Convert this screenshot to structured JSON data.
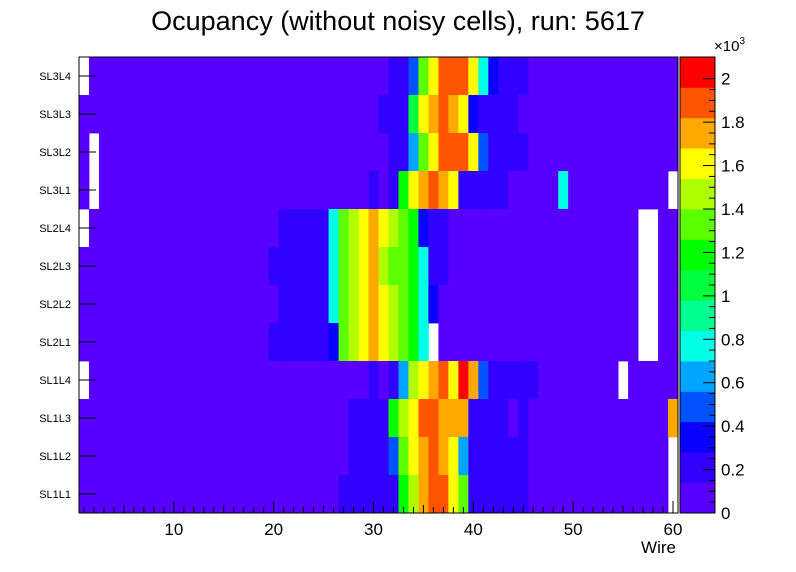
{
  "chart_data": {
    "type": "heatmap",
    "title": "Ocupancy (without noisy cells), run: 5617",
    "xlabel": "Wire",
    "ylabel": "",
    "xlim": [
      0.5,
      60.5
    ],
    "x_ticks": [
      "10",
      "20",
      "30",
      "40",
      "50",
      "60"
    ],
    "x_tick_values": [
      10,
      20,
      30,
      40,
      50,
      60
    ],
    "rows": [
      "SL3L4",
      "SL3L3",
      "SL3L2",
      "SL3L1",
      "SL2L4",
      "SL2L3",
      "SL2L2",
      "SL2L1",
      "SL1L4",
      "SL1L3",
      "SL1L2",
      "SL1L1"
    ],
    "z_scale_label": "×10",
    "z_scale_exponent": "3",
    "zlim": [
      0,
      2100
    ],
    "z_ticks": [
      "0",
      "0.2",
      "0.4",
      "0.6",
      "0.8",
      "1",
      "1.2",
      "1.4",
      "1.6",
      "1.8",
      "2"
    ],
    "z_tick_values": [
      0,
      200,
      400,
      600,
      800,
      1000,
      1200,
      1400,
      1600,
      1800,
      2000
    ],
    "values": [
      [
        0,
        80,
        80,
        80,
        80,
        80,
        80,
        80,
        80,
        80,
        80,
        80,
        80,
        80,
        80,
        80,
        80,
        80,
        80,
        80,
        80,
        80,
        80,
        80,
        80,
        80,
        80,
        80,
        80,
        80,
        80,
        200,
        200,
        500,
        1300,
        1600,
        1850,
        1950,
        1850,
        1600,
        800,
        300,
        200,
        200,
        200,
        80,
        80,
        80,
        80,
        80,
        80,
        80,
        80,
        80,
        80,
        80,
        80,
        80,
        80,
        80
      ],
      [
        80,
        80,
        80,
        80,
        80,
        80,
        80,
        80,
        80,
        80,
        80,
        80,
        80,
        80,
        80,
        80,
        80,
        80,
        80,
        80,
        80,
        80,
        80,
        80,
        80,
        80,
        80,
        80,
        80,
        80,
        200,
        200,
        250,
        1100,
        1550,
        1800,
        1950,
        1800,
        1650,
        300,
        220,
        220,
        220,
        220,
        80,
        80,
        80,
        80,
        80,
        80,
        80,
        80,
        80,
        80,
        80,
        80,
        80,
        80,
        80,
        80
      ],
      [
        80,
        0,
        80,
        80,
        80,
        80,
        80,
        80,
        80,
        80,
        80,
        80,
        80,
        80,
        80,
        80,
        80,
        80,
        80,
        80,
        80,
        80,
        80,
        80,
        80,
        80,
        80,
        80,
        80,
        80,
        80,
        200,
        200,
        600,
        1350,
        1600,
        1850,
        1950,
        1850,
        1650,
        500,
        250,
        200,
        200,
        200,
        80,
        80,
        80,
        80,
        80,
        80,
        80,
        80,
        80,
        80,
        80,
        80,
        80,
        80,
        80
      ],
      [
        80,
        0,
        80,
        80,
        80,
        80,
        80,
        80,
        80,
        80,
        80,
        80,
        80,
        80,
        80,
        80,
        80,
        80,
        80,
        80,
        80,
        80,
        80,
        80,
        80,
        80,
        80,
        80,
        80,
        150,
        80,
        250,
        1200,
        1550,
        1800,
        1950,
        1800,
        1600,
        200,
        200,
        200,
        200,
        200,
        80,
        80,
        80,
        80,
        80,
        700,
        80,
        80,
        80,
        80,
        80,
        80,
        80,
        80,
        80,
        80,
        0
      ],
      [
        0,
        80,
        80,
        80,
        80,
        80,
        80,
        80,
        80,
        80,
        80,
        80,
        80,
        80,
        80,
        80,
        80,
        80,
        80,
        80,
        200,
        200,
        200,
        200,
        200,
        700,
        1300,
        1450,
        1650,
        1800,
        1650,
        1400,
        1300,
        1200,
        350,
        250,
        250,
        80,
        80,
        80,
        80,
        80,
        80,
        80,
        80,
        80,
        80,
        80,
        80,
        80,
        80,
        80,
        80,
        80,
        80,
        80,
        0,
        0,
        80,
        80
      ],
      [
        80,
        80,
        80,
        80,
        80,
        80,
        80,
        80,
        80,
        80,
        80,
        80,
        80,
        80,
        80,
        80,
        80,
        80,
        80,
        200,
        200,
        200,
        200,
        200,
        200,
        700,
        1300,
        1450,
        1650,
        1700,
        1400,
        1300,
        1300,
        1250,
        700,
        200,
        200,
        80,
        80,
        80,
        80,
        80,
        80,
        80,
        80,
        80,
        80,
        80,
        80,
        80,
        80,
        80,
        80,
        80,
        80,
        80,
        0,
        0,
        80,
        80
      ],
      [
        80,
        80,
        80,
        80,
        80,
        80,
        80,
        80,
        80,
        80,
        80,
        80,
        80,
        80,
        80,
        80,
        80,
        80,
        80,
        80,
        200,
        200,
        200,
        200,
        200,
        700,
        1300,
        1450,
        1600,
        1800,
        1600,
        1400,
        1300,
        1250,
        700,
        280,
        80,
        80,
        80,
        80,
        80,
        80,
        80,
        80,
        80,
        80,
        80,
        80,
        80,
        80,
        80,
        80,
        80,
        80,
        80,
        80,
        0,
        0,
        80,
        80
      ],
      [
        80,
        80,
        80,
        80,
        80,
        80,
        80,
        80,
        80,
        80,
        80,
        80,
        80,
        80,
        80,
        80,
        80,
        80,
        80,
        200,
        200,
        200,
        200,
        200,
        200,
        300,
        1300,
        1450,
        1650,
        1800,
        1650,
        1400,
        1300,
        1250,
        700,
        0,
        80,
        80,
        80,
        80,
        80,
        80,
        80,
        80,
        80,
        80,
        80,
        80,
        80,
        80,
        80,
        80,
        80,
        80,
        80,
        80,
        0,
        0,
        80,
        80
      ],
      [
        0,
        80,
        80,
        80,
        80,
        80,
        80,
        80,
        80,
        80,
        80,
        80,
        80,
        80,
        80,
        80,
        80,
        80,
        80,
        80,
        80,
        80,
        80,
        80,
        80,
        80,
        80,
        80,
        80,
        200,
        80,
        200,
        600,
        1450,
        1650,
        1800,
        1850,
        1650,
        2000,
        1700,
        500,
        250,
        200,
        200,
        200,
        200,
        80,
        80,
        80,
        80,
        80,
        80,
        80,
        80,
        0,
        80,
        80,
        80,
        80,
        80
      ],
      [
        80,
        80,
        80,
        80,
        80,
        80,
        80,
        80,
        80,
        80,
        80,
        80,
        80,
        80,
        80,
        80,
        80,
        80,
        80,
        80,
        80,
        80,
        80,
        80,
        80,
        80,
        80,
        200,
        200,
        200,
        200,
        1250,
        1450,
        1600,
        1850,
        1900,
        1750,
        1700,
        1800,
        200,
        200,
        200,
        200,
        80,
        200,
        80,
        80,
        80,
        80,
        80,
        80,
        80,
        80,
        80,
        80,
        80,
        80,
        80,
        80,
        1800
      ],
      [
        80,
        80,
        80,
        80,
        80,
        80,
        80,
        80,
        80,
        80,
        80,
        80,
        80,
        80,
        80,
        80,
        80,
        80,
        80,
        80,
        80,
        80,
        80,
        80,
        80,
        80,
        80,
        200,
        200,
        200,
        200,
        500,
        1350,
        1600,
        1800,
        1900,
        1800,
        1600,
        600,
        200,
        200,
        200,
        200,
        200,
        200,
        80,
        80,
        80,
        80,
        80,
        80,
        80,
        80,
        80,
        80,
        80,
        80,
        80,
        80,
        0
      ],
      [
        80,
        80,
        80,
        80,
        80,
        80,
        80,
        80,
        80,
        80,
        80,
        80,
        80,
        80,
        80,
        80,
        80,
        80,
        80,
        80,
        80,
        80,
        80,
        80,
        80,
        80,
        200,
        200,
        200,
        200,
        200,
        200,
        1200,
        1500,
        1750,
        1850,
        1850,
        1600,
        1300,
        200,
        200,
        200,
        200,
        200,
        200,
        80,
        80,
        80,
        80,
        80,
        80,
        80,
        80,
        80,
        80,
        80,
        80,
        80,
        80,
        0
      ]
    ]
  }
}
